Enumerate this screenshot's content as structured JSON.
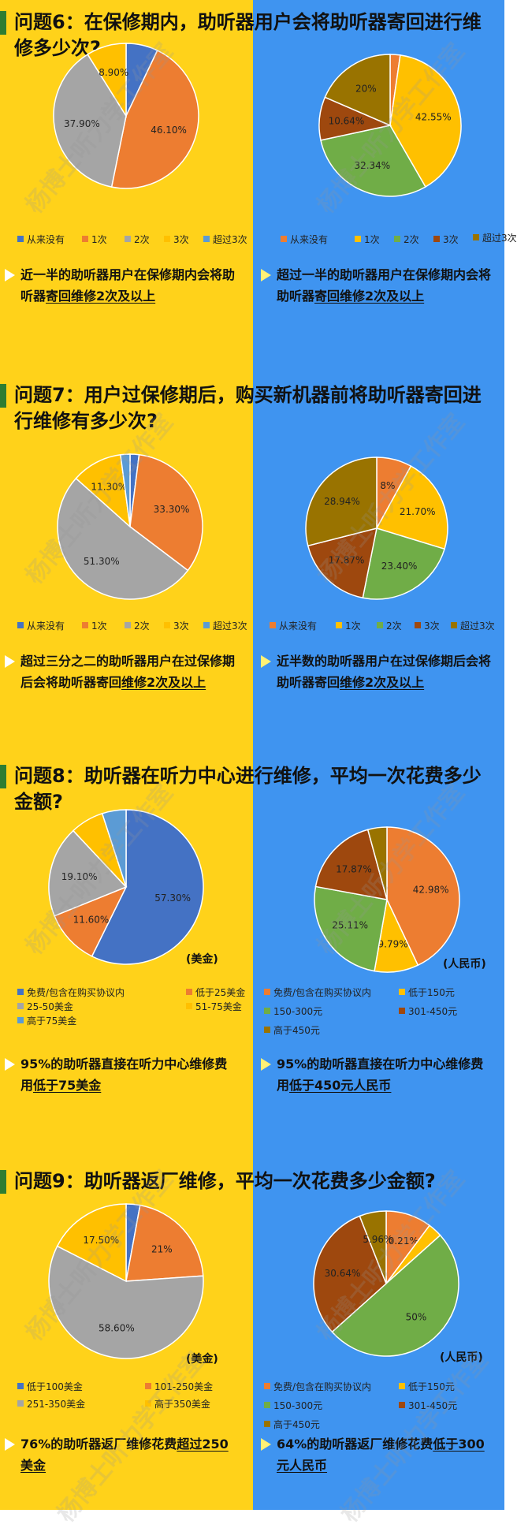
{
  "watermark_text": "杨博士听力学工作室",
  "colors": {
    "left_bg": "#ffd21a",
    "right_bg": "#3f94f0",
    "left_palette": [
      "#4472c4",
      "#ed7d31",
      "#a5a5a5",
      "#ffc000",
      "#5b9bd5"
    ],
    "right_palette": [
      "#ed7d31",
      "#ffc000",
      "#70ad47",
      "#9e480e",
      "#997300"
    ]
  },
  "sections": [
    {
      "id": "q6",
      "title": "问题6：在保修期内，助听器用户会将助听器寄回进行维修多少次?",
      "left": {
        "chart_data": {
          "type": "pie",
          "categories": [
            "从来没有",
            "1次",
            "2次",
            "3次",
            "超过3次"
          ],
          "values": [
            7.1,
            46.1,
            37.9,
            8.9,
            0
          ],
          "labels": [
            "",
            "46.10%",
            "37.90%",
            "8.90%",
            ""
          ],
          "legend_position": "bottom"
        },
        "conclusion": {
          "before": "近一半的助听器用户在保修期内会将助听器",
          "underline": "寄回维修2次及以上",
          "after": ""
        }
      },
      "right": {
        "chart_data": {
          "type": "pie",
          "categories": [
            "从来没有",
            "1次",
            "2次",
            "3次",
            "超过3次"
          ],
          "values": [
            2.47,
            42.55,
            32.34,
            10.64,
            20
          ],
          "labels": [
            "",
            "42.55%",
            "32.34%",
            "10.64%",
            "20%"
          ],
          "legend_position": "bottom"
        },
        "conclusion": {
          "before": "超过一半的助听器用户在保修期内会将助听器",
          "underline": "寄回维修2次及以上",
          "after": ""
        }
      }
    },
    {
      "id": "q7",
      "title": "问题7：用户过保修期后，购买新机器前将助听器寄回进行维修有多少次?",
      "left": {
        "chart_data": {
          "type": "pie",
          "categories": [
            "从来没有",
            "1次",
            "2次",
            "3次",
            "超过3次"
          ],
          "values": [
            2.0,
            33.3,
            51.3,
            11.3,
            2.1
          ],
          "labels": [
            "",
            "33.30%",
            "51.30%",
            "11.30%",
            ""
          ],
          "legend_position": "bottom"
        },
        "conclusion": {
          "before": "超过三分之二的助听器用户在过保修期后会将助听器寄回",
          "underline": "维修2次及以上",
          "after": ""
        }
      },
      "right": {
        "chart_data": {
          "type": "pie",
          "categories": [
            "从来没有",
            "1次",
            "2次",
            "3次",
            "超过3次"
          ],
          "values": [
            8,
            21.7,
            23.4,
            17.87,
            28.94
          ],
          "labels": [
            "8%",
            "21.70%",
            "23.40%",
            "17.87%",
            "28.94%"
          ],
          "legend_position": "bottom"
        },
        "conclusion": {
          "before": "近半数的助听器用户在过保修期后会将助听器寄回",
          "underline": "维修2次及以上",
          "after": ""
        }
      }
    },
    {
      "id": "q8",
      "title": "问题8：助听器在听力中心进行维修，平均一次花费多少金额?",
      "left": {
        "unit": "(美金)",
        "chart_data": {
          "type": "pie",
          "categories": [
            "免费/包含在购买协议内",
            "低于25美金",
            "25-50美金",
            "51-75美金",
            "高于75美金"
          ],
          "values": [
            57.3,
            11.6,
            19.1,
            7.0,
            5.0
          ],
          "labels": [
            "57.30%",
            "11.60%",
            "19.10%",
            "",
            ""
          ],
          "legend_position": "bottom"
        },
        "conclusion": {
          "before": "95%的助听器直接在听力中心维修费用",
          "underline": "低于75美金",
          "after": ""
        }
      },
      "right": {
        "unit": "(人民币)",
        "chart_data": {
          "type": "pie",
          "categories": [
            "免费/包含在购买协议内",
            "低于150元",
            "150-300元",
            "301-450元",
            "高于450元"
          ],
          "values": [
            42.98,
            9.79,
            25.11,
            17.87,
            4.25
          ],
          "labels": [
            "42.98%",
            "9.79%",
            "25.11%",
            "17.87%",
            ""
          ],
          "legend_position": "bottom"
        },
        "conclusion": {
          "before": "95%的助听器直接在听力中心维修费用",
          "underline": "低于450元人民币",
          "after": ""
        }
      }
    },
    {
      "id": "q9",
      "title": "问题9：助听器返厂维修，平均一次花费多少金额?",
      "left": {
        "unit": "(美金)",
        "chart_data": {
          "type": "pie",
          "categories": [
            "低于100美金",
            "101-250美金",
            "251-350美金",
            "高于350美金"
          ],
          "values": [
            2.9,
            21,
            58.6,
            17.5
          ],
          "labels": [
            "",
            "21%",
            "58.60%",
            "17.50%"
          ],
          "legend_position": "bottom"
        },
        "conclusion": {
          "before": "76%的助听器返厂维修花费",
          "underline": "超过250美金",
          "after": ""
        }
      },
      "right": {
        "unit": "(人民币)",
        "chart_data": {
          "type": "pie",
          "categories": [
            "免费/包含在购买协议内",
            "低于150元",
            "150-300元",
            "301-450元",
            "高于450元"
          ],
          "values": [
            10.21,
            3.19,
            50,
            30.64,
            5.96
          ],
          "labels": [
            "10.21%",
            "",
            "50%",
            "30.64%",
            "5.96%"
          ],
          "legend_position": "bottom"
        },
        "conclusion": {
          "before": "64%的助听器返厂维修花费",
          "underline": "低于300元人民币",
          "after": ""
        }
      }
    }
  ]
}
